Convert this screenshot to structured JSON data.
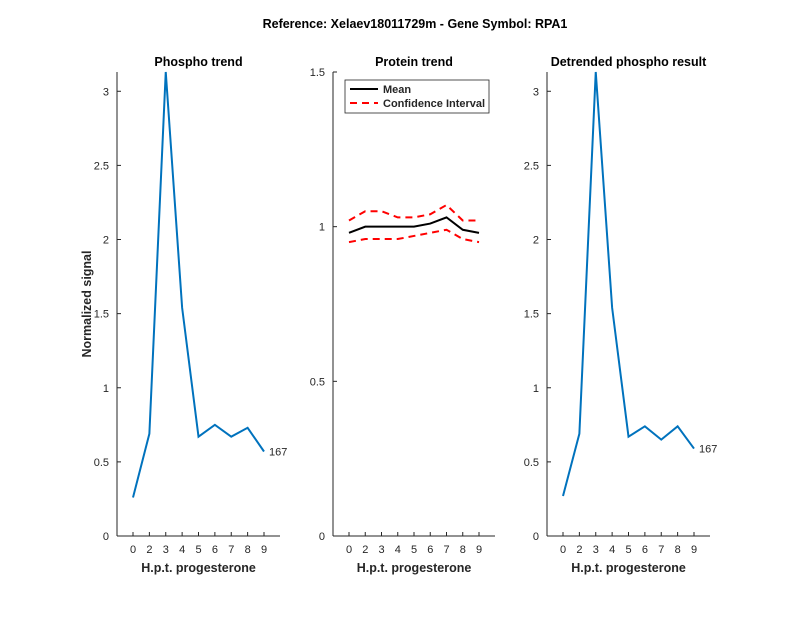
{
  "suptitle": "Reference:  Xelaev18011729m - Gene Symbol:  RPA1",
  "chart_data": [
    {
      "type": "line",
      "title": "Phospho trend",
      "xlabel": "H.p.t. progesterone",
      "ylabel": "Normalized signal",
      "categories": [
        "0",
        "2",
        "3",
        "4",
        "5",
        "6",
        "7",
        "8",
        "9"
      ],
      "ylim": [
        0,
        3.13
      ],
      "yticks": [
        "0",
        "0.5",
        "1",
        "1.5",
        "2",
        "2.5",
        "3"
      ],
      "series": [
        {
          "values": [
            0.26,
            0.69,
            3.13,
            1.54,
            0.67,
            0.75,
            0.67,
            0.73,
            0.57
          ],
          "color": "#0072BD"
        }
      ],
      "annotation": "167"
    },
    {
      "type": "line",
      "title": "Protein trend",
      "xlabel": "H.p.t. progesterone",
      "ylabel": "",
      "categories": [
        "0",
        "2",
        "3",
        "4",
        "5",
        "6",
        "7",
        "8",
        "9"
      ],
      "ylim": [
        0,
        1.5
      ],
      "yticks": [
        "0",
        "0.5",
        "1",
        "1.5"
      ],
      "legend": "top-left",
      "series": [
        {
          "name": "Mean",
          "values": [
            0.98,
            1,
            1,
            1,
            1,
            1.01,
            1.03,
            0.99,
            0.98
          ],
          "color": "#000000",
          "dash": false
        },
        {
          "name": "Confidence Interval",
          "values": [
            1.02,
            1.05,
            1.05,
            1.03,
            1.03,
            1.04,
            1.07,
            1.02,
            1.02
          ],
          "color": "#FF0000",
          "dash": true
        },
        {
          "values": [
            0.95,
            0.96,
            0.96,
            0.96,
            0.97,
            0.98,
            0.99,
            0.96,
            0.95
          ],
          "color": "#FF0000",
          "dash": true
        }
      ]
    },
    {
      "type": "line",
      "title": "Detrended phospho result",
      "xlabel": "H.p.t. progesterone",
      "ylabel": "",
      "categories": [
        "0",
        "2",
        "3",
        "4",
        "5",
        "6",
        "7",
        "8",
        "9"
      ],
      "ylim": [
        0,
        3.13
      ],
      "yticks": [
        "0",
        "0.5",
        "1",
        "1.5",
        "2",
        "2.5",
        "3"
      ],
      "series": [
        {
          "values": [
            0.27,
            0.69,
            3.13,
            1.54,
            0.67,
            0.74,
            0.65,
            0.74,
            0.59
          ],
          "color": "#0072BD"
        }
      ],
      "annotation": "167"
    }
  ]
}
